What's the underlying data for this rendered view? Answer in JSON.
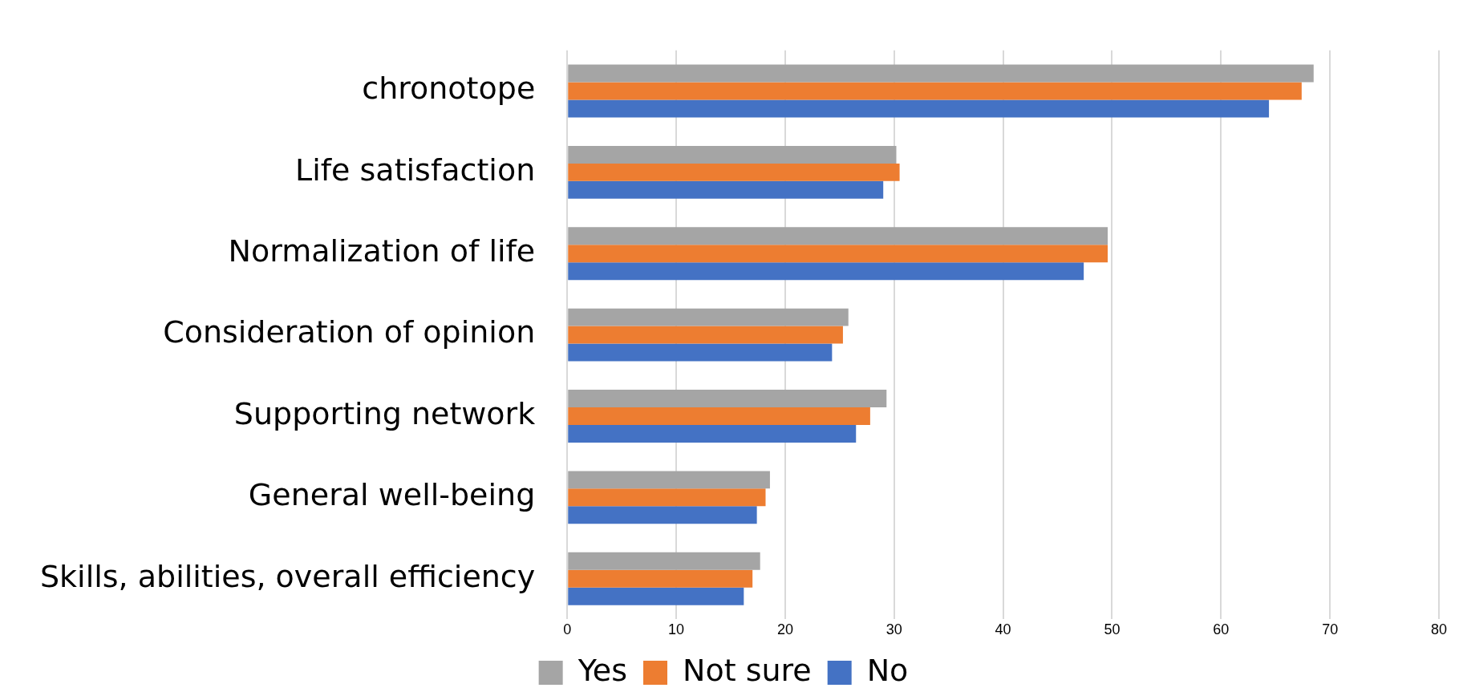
{
  "chart_data": {
    "type": "bar",
    "orientation": "horizontal",
    "categories": [
      "chronotope",
      "Life satisfaction",
      "Normalization of life",
      "Consideration of opinion",
      "Supporting network",
      "General well-being",
      "Skills, abilities, overall efficiency"
    ],
    "series": [
      {
        "name": "Yes",
        "color": "#a5a5a5",
        "values": [
          68.5,
          30.2,
          49.6,
          25.8,
          29.3,
          18.6,
          17.7
        ]
      },
      {
        "name": "Not sure",
        "color": "#ed7d31",
        "values": [
          67.4,
          30.5,
          49.6,
          25.3,
          27.8,
          18.2,
          17.0
        ]
      },
      {
        "name": "No",
        "color": "#4472c4",
        "values": [
          64.4,
          29.0,
          47.4,
          24.3,
          26.5,
          17.4,
          16.2
        ]
      }
    ],
    "xlim": [
      0,
      80
    ],
    "xticks": [
      0,
      10,
      20,
      30,
      40,
      50,
      60,
      70,
      80
    ],
    "grid": "x",
    "legend": "bottom"
  }
}
